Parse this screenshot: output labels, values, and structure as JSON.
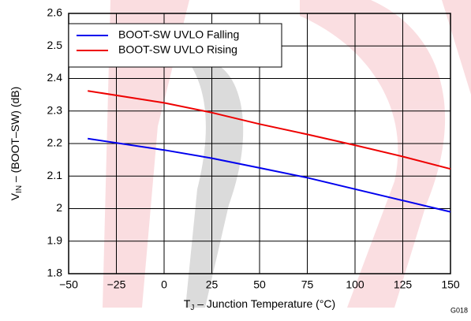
{
  "chart_data": {
    "type": "line",
    "xlabel": {
      "main": "T",
      "sub": "J",
      "rest": " – Junction Temperature (°C)"
    },
    "ylabel": {
      "main": "V",
      "sub": "IN",
      "rest": " – (BOOT–SW) (dB)"
    },
    "note": "G018",
    "x": [
      -40,
      0,
      25,
      50,
      75,
      100,
      125,
      150
    ],
    "series": [
      {
        "name": "BOOT-SW UVLO Falling",
        "color": "#0000ee",
        "values": [
          2.215,
          2.18,
          2.155,
          2.125,
          2.095,
          2.06,
          2.025,
          1.99
        ]
      },
      {
        "name": "BOOT-SW UVLO Rising",
        "color": "#ee0000",
        "values": [
          2.362,
          2.325,
          2.295,
          2.26,
          2.228,
          2.195,
          2.16,
          2.122
        ]
      }
    ],
    "xlim": [
      -50,
      150
    ],
    "xticks": [
      {
        "value": -50,
        "label": "−50"
      },
      {
        "value": -25,
        "label": "−25"
      },
      0,
      25,
      50,
      75,
      100,
      125,
      150
    ],
    "ylim": [
      1.8,
      2.6
    ],
    "yticks": [
      1.8,
      1.9,
      2,
      2.1,
      2.2,
      2.3,
      2.4,
      2.5,
      2.6
    ],
    "grid": true,
    "legend": "upper-left"
  }
}
